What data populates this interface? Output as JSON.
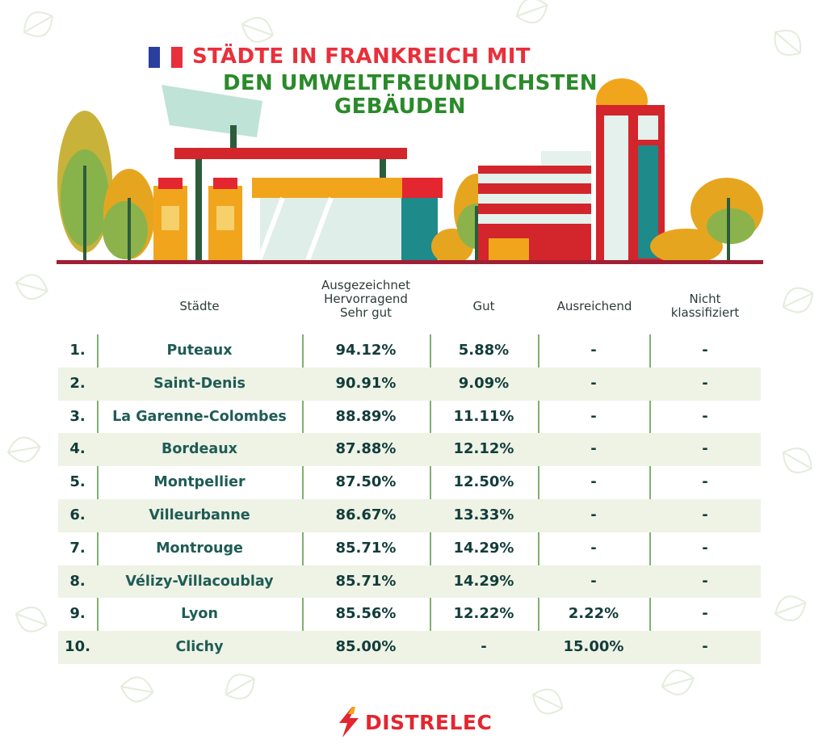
{
  "title": {
    "line1": "STÄDTE IN FRANKREICH MIT",
    "line2": "DEN UMWELTFREUNDLICHSTEN",
    "line3": "GEBÄUDEN"
  },
  "colors": {
    "title_red": "#e8303b",
    "title_green": "#2a8a2a",
    "text_dark": "#123c3a",
    "row_alt": "#eef3e6",
    "divider": "#7fb070",
    "brand_red": "#e3262f"
  },
  "chart_data": {
    "type": "table",
    "columns": [
      "Städte",
      "Ausgezeichnet\nHervorragend\nSehr gut",
      "Gut",
      "Ausreichend",
      "Nicht\nklassifiziert"
    ],
    "rows": [
      {
        "rank": "1.",
        "city": "Puteaux",
        "v1": "94.12%",
        "v2": "5.88%",
        "v3": "-",
        "v4": "-"
      },
      {
        "rank": "2.",
        "city": "Saint-Denis",
        "v1": "90.91%",
        "v2": "9.09%",
        "v3": "-",
        "v4": "-"
      },
      {
        "rank": "3.",
        "city": "La Garenne-Colombes",
        "v1": "88.89%",
        "v2": "11.11%",
        "v3": "-",
        "v4": "-"
      },
      {
        "rank": "4.",
        "city": "Bordeaux",
        "v1": "87.88%",
        "v2": "12.12%",
        "v3": "-",
        "v4": "-"
      },
      {
        "rank": "5.",
        "city": "Montpellier",
        "v1": "87.50%",
        "v2": "12.50%",
        "v3": "-",
        "v4": "-"
      },
      {
        "rank": "6.",
        "city": "Villeurbanne",
        "v1": "86.67%",
        "v2": "13.33%",
        "v3": "-",
        "v4": "-"
      },
      {
        "rank": "7.",
        "city": "Montrouge",
        "v1": "85.71%",
        "v2": "14.29%",
        "v3": "-",
        "v4": "-"
      },
      {
        "rank": "8.",
        "city": "Vélizy-Villacoublay",
        "v1": "85.71%",
        "v2": "14.29%",
        "v3": "-",
        "v4": "-"
      },
      {
        "rank": "9.",
        "city": "Lyon",
        "v1": "85.56%",
        "v2": "12.22%",
        "v3": "2.22%",
        "v4": "-"
      },
      {
        "rank": "10.",
        "city": "Clichy",
        "v1": "85.00%",
        "v2": "-",
        "v3": "15.00%",
        "v4": "-"
      }
    ]
  },
  "brand": {
    "name": "DISTRELEC",
    "icon": "lightning-bolt-icon"
  },
  "illustration": {
    "icon": "eco-buildings-illustration",
    "flag_icon": "french-flag-icon",
    "background_icon": "leaf-pattern-icon"
  }
}
